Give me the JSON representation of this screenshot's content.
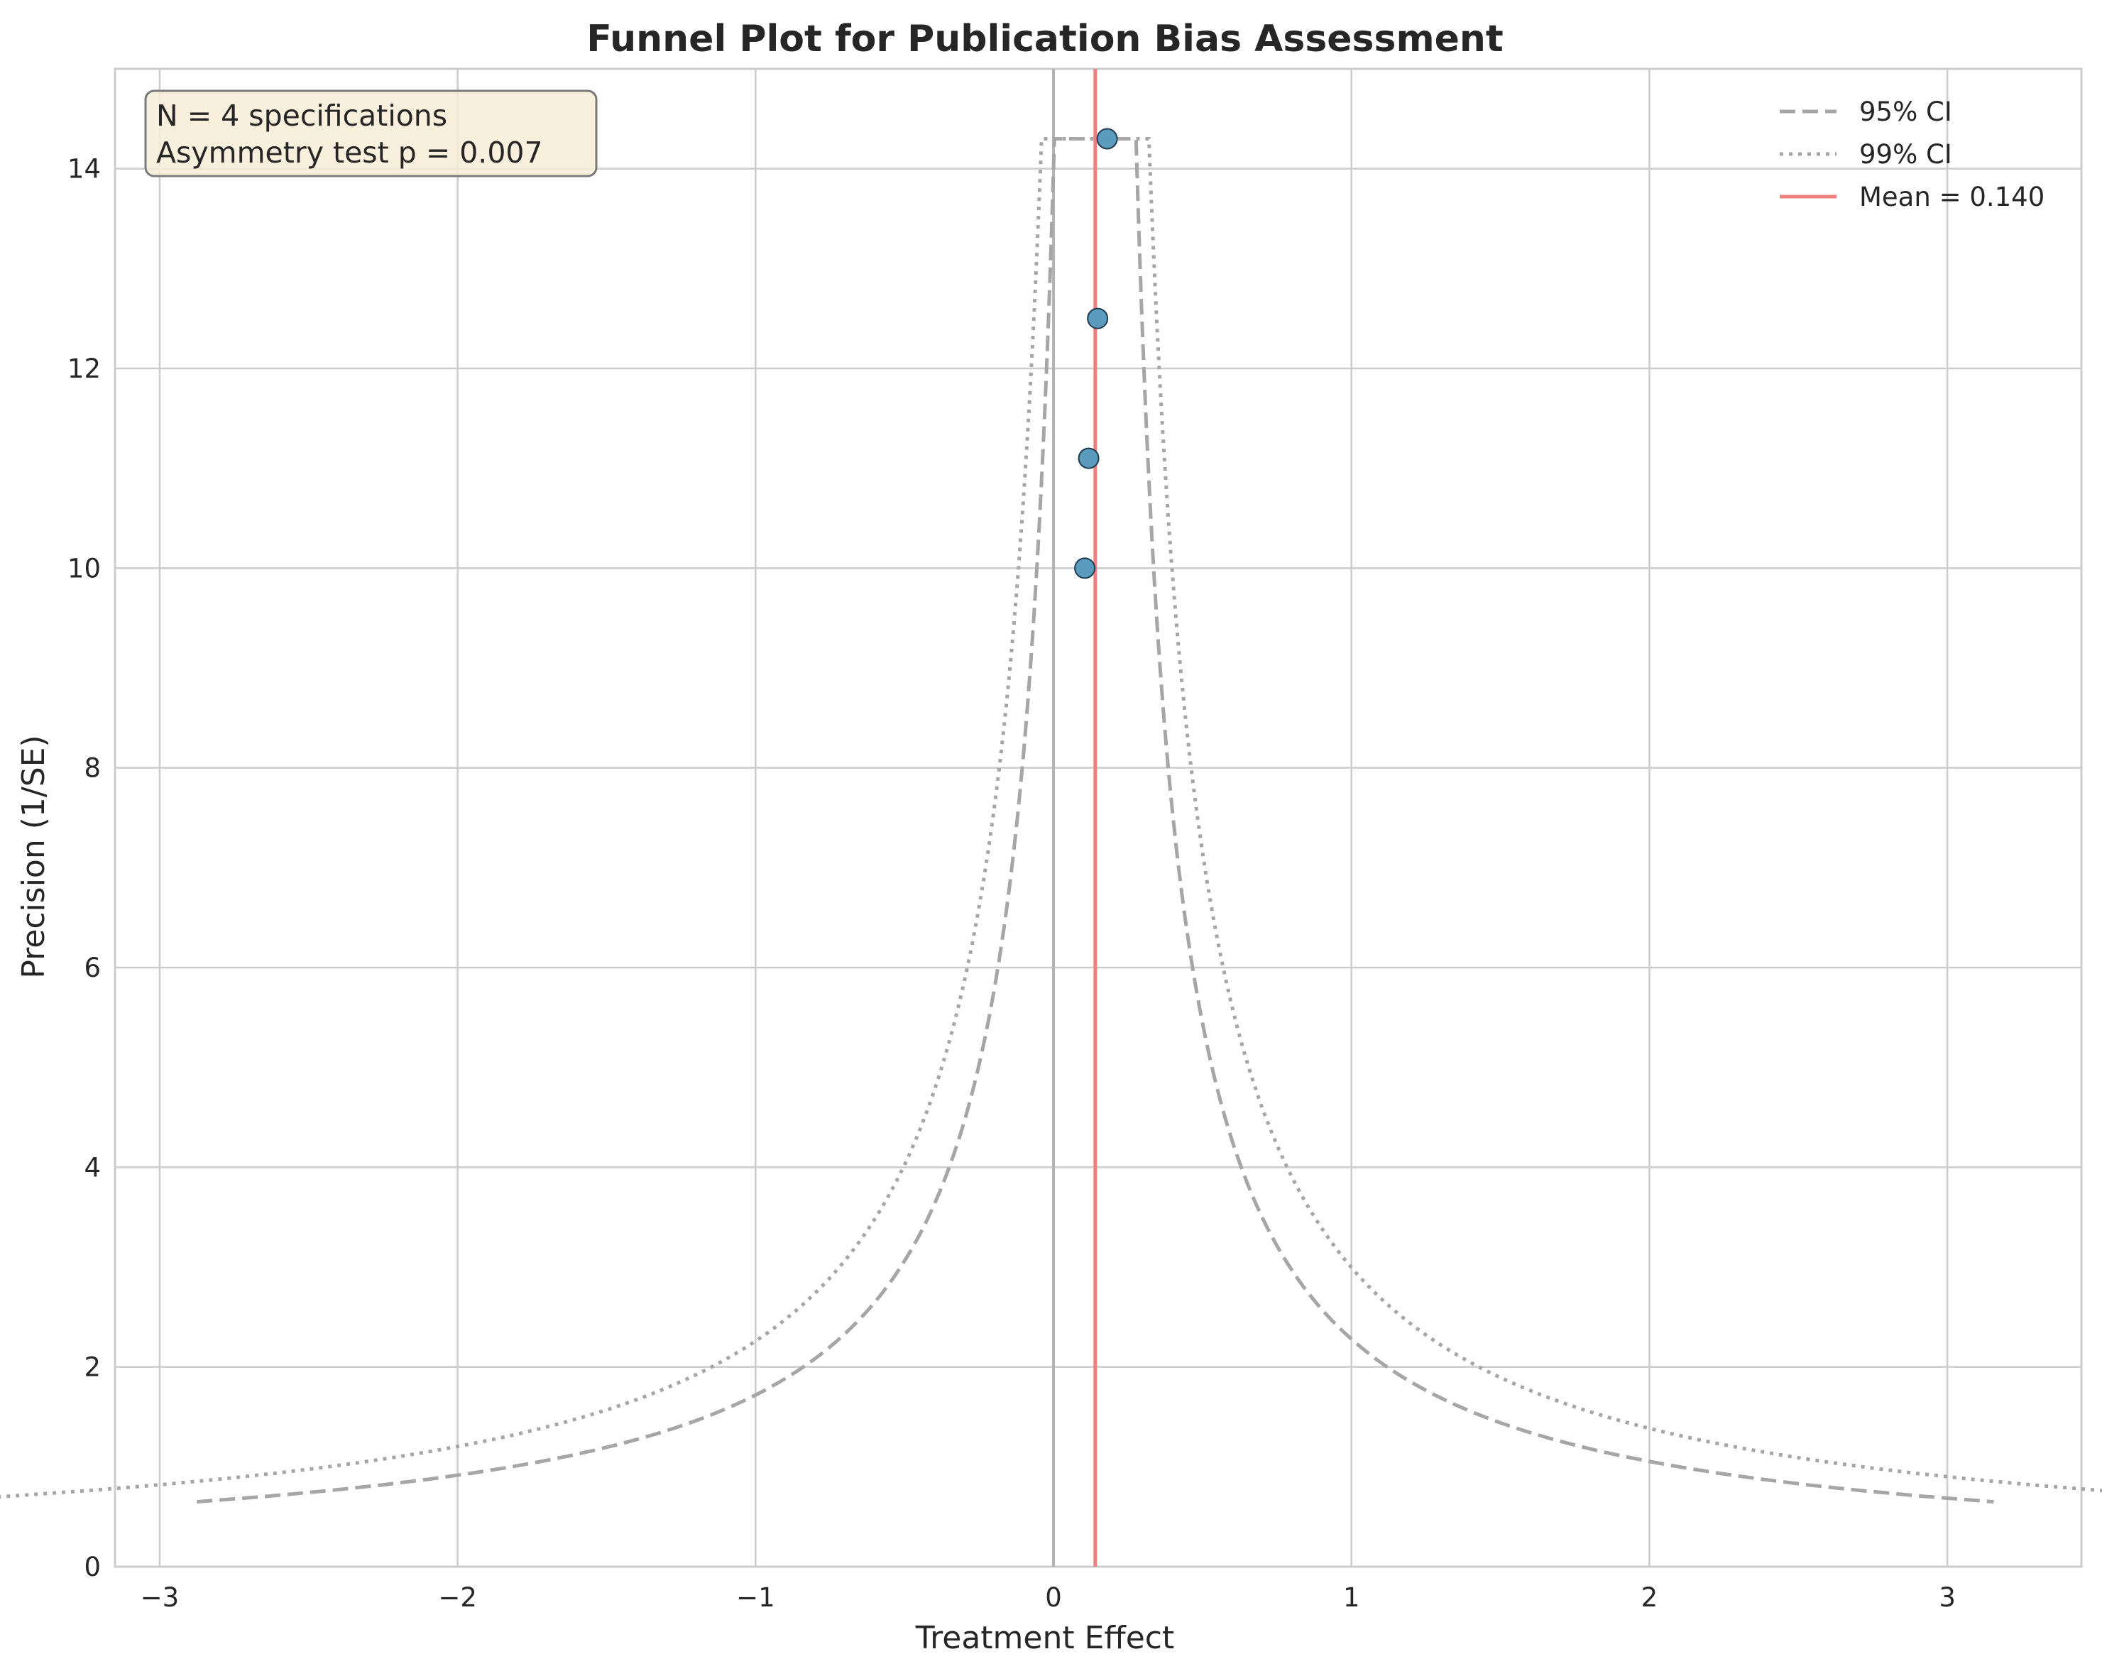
{
  "chart_data": {
    "type": "scatter",
    "title": "Funnel Plot for Publication Bias Assessment",
    "xlabel": "Treatment Effect",
    "ylabel": "Precision (1/SE)",
    "xlim": [
      -3.15,
      3.45
    ],
    "ylim": [
      0,
      15
    ],
    "xticks": [
      -3,
      -2,
      -1,
      0,
      1,
      2,
      3
    ],
    "xtick_labels": [
      "−3",
      "−2",
      "−1",
      "0",
      "1",
      "2",
      "3"
    ],
    "yticks": [
      0,
      2,
      4,
      6,
      8,
      10,
      12,
      14
    ],
    "ytick_labels": [
      "0",
      "2",
      "4",
      "6",
      "8",
      "10",
      "12",
      "14"
    ],
    "grid": true,
    "legend_position": "top-right",
    "points": [
      {
        "x": 0.105,
        "y": 10.0
      },
      {
        "x": 0.118,
        "y": 11.1
      },
      {
        "x": 0.148,
        "y": 12.5
      },
      {
        "x": 0.18,
        "y": 14.3
      }
    ],
    "mean": 0.14,
    "ci_lines": [
      {
        "name": "95% CI",
        "z": 1.96,
        "style": "dashed"
      },
      {
        "name": "99% CI",
        "z": 2.576,
        "style": "dotted"
      }
    ],
    "mean_line_label": "Mean = 0.140",
    "precision_range": [
      0.65,
      14.3
    ],
    "zero_line_x": 0,
    "annotation": {
      "line1": "N = 4 specifications",
      "line2": "Asymmetry test p = 0.007"
    },
    "colors": {
      "points": "#5b9bbd",
      "point_edge": "#1f3b50",
      "ci": "#a6a6a6",
      "mean": "#f08080",
      "zero": "#b3b3b3",
      "grid": "#cccccc",
      "annot_bg": "#f7ecd6",
      "annot_border": "#7a7a7a"
    }
  }
}
